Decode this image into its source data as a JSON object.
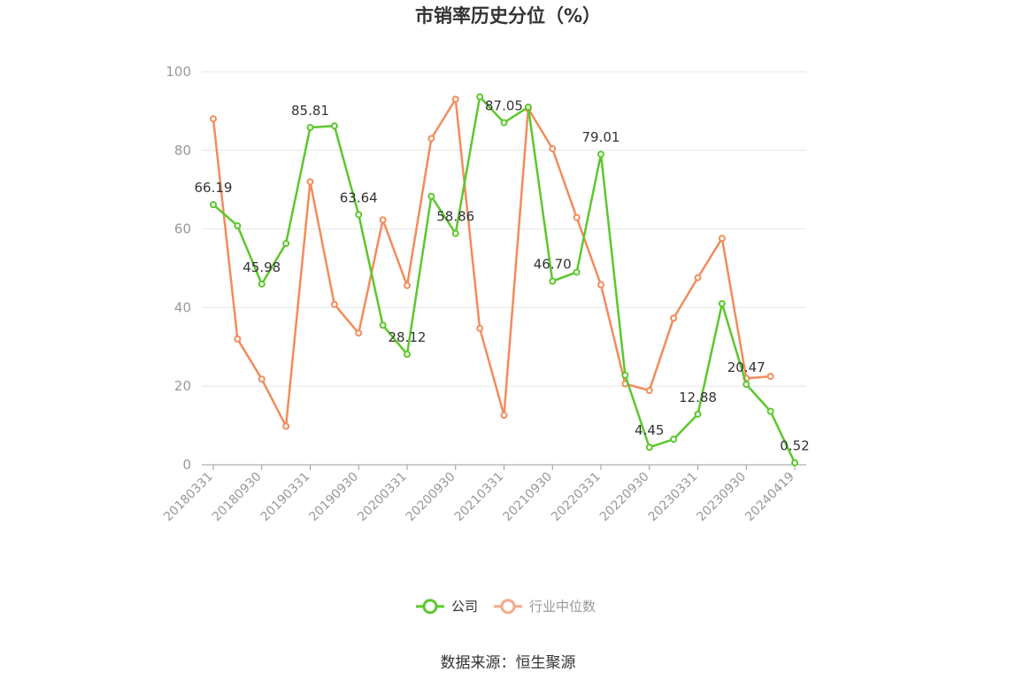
{
  "chart_data": {
    "type": "line",
    "title": "市销率历史分位（%）",
    "ylim": [
      0,
      100
    ],
    "yticks": [
      "0",
      "20",
      "40",
      "60",
      "80",
      "100"
    ],
    "x": [
      "20180331",
      "20180630",
      "20180930",
      "20181231",
      "20190331",
      "20190630",
      "20190930",
      "20191231",
      "20200331",
      "20200630",
      "20200930",
      "20201231",
      "20210331",
      "20210630",
      "20210930",
      "20211231",
      "20220331",
      "20220630",
      "20220930",
      "20221231",
      "20230331",
      "20230630",
      "20230930",
      "20231231",
      "20240419"
    ],
    "xtick_labels": [
      "20180331",
      "20180930",
      "20190331",
      "20190930",
      "20200331",
      "20200930",
      "20210331",
      "20210930",
      "20220331",
      "20220930",
      "20230331",
      "20230930",
      "20240419"
    ],
    "series": [
      {
        "name": "公司",
        "color": "#5cc72c",
        "values": [
          66.19,
          60.8,
          45.98,
          56.3,
          85.81,
          86.2,
          63.64,
          35.5,
          28.12,
          68.3,
          58.86,
          93.6,
          87.05,
          91.0,
          46.7,
          49.0,
          79.01,
          22.8,
          4.45,
          6.5,
          12.88,
          41.0,
          20.47,
          13.6,
          0.52
        ],
        "labels": {
          "0": "66.19",
          "2": "45.98",
          "4": "85.81",
          "6": "63.64",
          "8": "28.12",
          "10": "58.86",
          "12": "87.05",
          "14": "46.70",
          "16": "79.01",
          "18": "4.45",
          "20": "12.88",
          "22": "20.47",
          "24": "0.52"
        }
      },
      {
        "name": "行业中位数",
        "color": "#f28c5c",
        "values": [
          88.0,
          32.0,
          21.8,
          9.8,
          72.0,
          40.8,
          33.5,
          62.3,
          45.6,
          83.0,
          93.0,
          34.7,
          12.6,
          90.6,
          80.4,
          62.9,
          45.8,
          20.6,
          18.9,
          37.3,
          47.6,
          57.6,
          22.0,
          22.5,
          null
        ]
      }
    ],
    "grid": true,
    "legend_position": "bottom-center"
  },
  "legend": [
    {
      "label": "公司",
      "color": "#5cc72c"
    },
    {
      "label": "行业中位数",
      "color": "#f4a98a"
    }
  ],
  "source": "数据来源：恒生聚源"
}
